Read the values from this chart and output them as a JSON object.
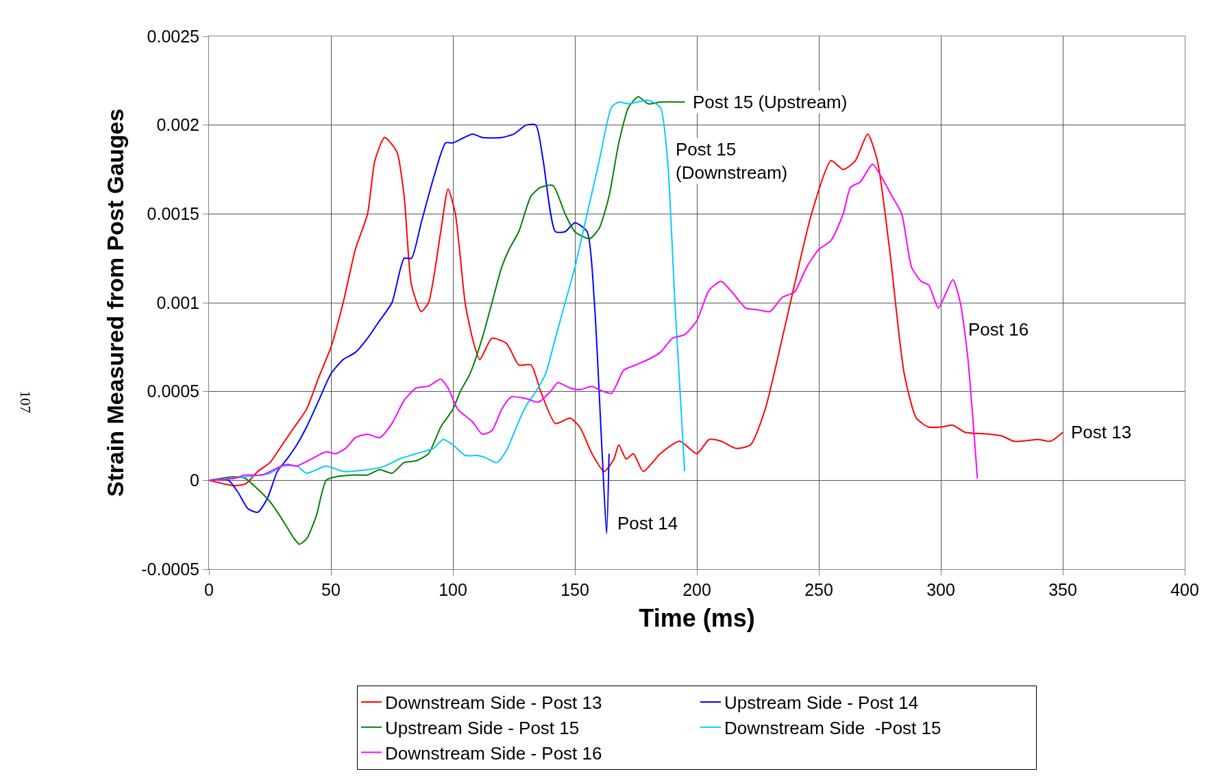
{
  "chart_data": {
    "type": "line",
    "xlabel": "Time (ms)",
    "ylabel": "Strain Measured from Post Gauges",
    "xlim": [
      0,
      400
    ],
    "xticks": [
      0,
      50,
      100,
      150,
      200,
      250,
      300,
      350,
      400
    ],
    "ylim": [
      -0.0005,
      0.0025
    ],
    "yticks": [
      -0.0005,
      0,
      0.0005,
      0.001,
      0.0015,
      0.002,
      0.0025
    ],
    "grid": true,
    "legend": "bottom",
    "marker": "none",
    "line_style": "solid",
    "series": [
      {
        "name": "Downstream Side - Post 13",
        "color": "#ff0000",
        "x": [
          0,
          10,
          15,
          20,
          25,
          30,
          35,
          40,
          45,
          50,
          55,
          60,
          65,
          68,
          72,
          77,
          80,
          83,
          87,
          90,
          95,
          98,
          101,
          105,
          108,
          111,
          116,
          122,
          127,
          132,
          136,
          142,
          148,
          152,
          157,
          162,
          166,
          168,
          171,
          174,
          178,
          185,
          193,
          200,
          205,
          210,
          216,
          222,
          228,
          235,
          240,
          247,
          255,
          260,
          265,
          270,
          274,
          279,
          285,
          290,
          295,
          300,
          305,
          310,
          320,
          325,
          330,
          340,
          345,
          350
        ],
        "values": [
          0,
          -3e-05,
          -2e-05,
          5e-05,
          0.0001,
          0.0002,
          0.0003,
          0.0004,
          0.00058,
          0.00075,
          0.001,
          0.0013,
          0.0015,
          0.0018,
          0.00193,
          0.00185,
          0.0016,
          0.0011,
          0.00095,
          0.001,
          0.0014,
          0.00164,
          0.0015,
          0.001,
          0.0008,
          0.00068,
          0.0008,
          0.00077,
          0.00065,
          0.00065,
          0.0005,
          0.00032,
          0.00035,
          0.0003,
          0.00015,
          5e-05,
          0.00012,
          0.0002,
          0.00012,
          0.00015,
          5e-05,
          0.00015,
          0.00022,
          0.00015,
          0.00023,
          0.00022,
          0.00018,
          0.0002,
          0.0004,
          0.0008,
          0.0011,
          0.0015,
          0.0018,
          0.00175,
          0.0018,
          0.00195,
          0.0018,
          0.0013,
          0.0006,
          0.00035,
          0.0003,
          0.0003,
          0.00031,
          0.00027,
          0.00026,
          0.00025,
          0.00022,
          0.00023,
          0.00022,
          0.00027
        ]
      },
      {
        "name": "Upstream Side - Post 14",
        "color": "#0000ff",
        "x": [
          0,
          8,
          12,
          16,
          20,
          24,
          28,
          32,
          36,
          40,
          45,
          50,
          55,
          60,
          65,
          70,
          75,
          80,
          83,
          87,
          92,
          97,
          100,
          108,
          112,
          120,
          125,
          130,
          134,
          137,
          142,
          146,
          150,
          155,
          158,
          161,
          163,
          164
        ],
        "values": [
          0,
          0,
          -7e-05,
          -0.00016,
          -0.00018,
          -0.0001,
          5e-05,
          0.00012,
          0.0002,
          0.0003,
          0.00045,
          0.0006,
          0.00068,
          0.00072,
          0.0008,
          0.0009,
          0.001,
          0.00125,
          0.00125,
          0.00145,
          0.0017,
          0.0019,
          0.0019,
          0.00195,
          0.00193,
          0.00193,
          0.00195,
          0.002,
          0.002,
          0.0018,
          0.0014,
          0.0014,
          0.00145,
          0.0014,
          0.001,
          0.0002,
          -0.0003,
          0.00015
        ]
      },
      {
        "name": "Upstream Side - Post 15",
        "color": "#008000",
        "x": [
          0,
          10,
          15,
          20,
          25,
          30,
          35,
          37,
          40,
          44,
          48,
          52,
          60,
          65,
          70,
          75,
          80,
          85,
          90,
          95,
          100,
          103,
          107,
          112,
          116,
          120,
          123,
          127,
          132,
          136,
          141,
          146,
          150,
          156,
          160,
          164,
          168,
          172,
          176,
          180,
          185,
          195
        ],
        "values": [
          0,
          2e-05,
          1e-05,
          -5e-05,
          -0.00012,
          -0.00022,
          -0.00033,
          -0.00036,
          -0.00033,
          -0.0002,
          0,
          2e-05,
          3e-05,
          3e-05,
          6e-05,
          4e-05,
          0.0001,
          0.00011,
          0.00015,
          0.0003,
          0.0004,
          0.0005,
          0.0006,
          0.0008,
          0.001,
          0.0012,
          0.0013,
          0.0014,
          0.0016,
          0.00165,
          0.00166,
          0.0015,
          0.0014,
          0.00136,
          0.00142,
          0.0016,
          0.0019,
          0.0021,
          0.00216,
          0.00212,
          0.00213,
          0.00213
        ]
      },
      {
        "name": "Downstream Side  -Post 15",
        "color": "#00ccff",
        "x": [
          0,
          15,
          25,
          30,
          36,
          40,
          48,
          55,
          65,
          72,
          78,
          85,
          92,
          96,
          100,
          105,
          110,
          113,
          118,
          122,
          126,
          130,
          134,
          138,
          142,
          146,
          150,
          155,
          160,
          165,
          168,
          172,
          180,
          185,
          188,
          191,
          195
        ],
        "values": [
          0,
          2e-05,
          4e-05,
          8e-05,
          8e-05,
          4e-05,
          8e-05,
          5e-05,
          6e-05,
          8e-05,
          0.00012,
          0.00015,
          0.00018,
          0.00023,
          0.0002,
          0.00014,
          0.00014,
          0.00013,
          0.0001,
          0.00017,
          0.0003,
          0.00042,
          0.0005,
          0.0006,
          0.0008,
          0.001,
          0.0012,
          0.0015,
          0.0018,
          0.0021,
          0.00213,
          0.00212,
          0.00214,
          0.0021,
          0.0018,
          0.001,
          5e-05
        ]
      },
      {
        "name": "Downstream Side - Post 16",
        "color": "#ff00ff",
        "x": [
          0,
          10,
          15,
          22,
          28,
          32,
          36,
          42,
          48,
          52,
          56,
          60,
          65,
          70,
          75,
          80,
          85,
          90,
          95,
          98,
          102,
          108,
          112,
          116,
          120,
          124,
          130,
          135,
          140,
          143,
          148,
          152,
          157,
          160,
          165,
          170,
          175,
          180,
          185,
          190,
          195,
          200,
          205,
          210,
          215,
          220,
          225,
          230,
          235,
          240,
          245,
          250,
          255,
          260,
          263,
          267,
          272,
          276,
          280,
          284,
          288,
          292,
          295,
          299,
          302,
          305,
          308,
          311,
          315
        ],
        "values": [
          0,
          1e-05,
          3e-05,
          3e-05,
          7e-05,
          9e-05,
          8e-05,
          0.00012,
          0.00016,
          0.00015,
          0.00018,
          0.00024,
          0.00026,
          0.00024,
          0.00032,
          0.00045,
          0.00052,
          0.00053,
          0.00057,
          0.00052,
          0.0004,
          0.00033,
          0.00026,
          0.00028,
          0.0004,
          0.00047,
          0.00046,
          0.00044,
          0.0005,
          0.00055,
          0.00052,
          0.00051,
          0.00053,
          0.00051,
          0.00049,
          0.00062,
          0.00065,
          0.00068,
          0.00072,
          0.0008,
          0.00082,
          0.0009,
          0.00107,
          0.00112,
          0.00105,
          0.00097,
          0.00096,
          0.00095,
          0.00103,
          0.00106,
          0.0012,
          0.0013,
          0.00135,
          0.0015,
          0.00165,
          0.00168,
          0.00178,
          0.0017,
          0.0016,
          0.0015,
          0.0012,
          0.00112,
          0.0011,
          0.00097,
          0.00105,
          0.00113,
          0.001,
          0.0007,
          1e-05
        ]
      }
    ],
    "annotations": [
      {
        "text": "Post 15 (Upstream)",
        "x": 195,
        "y": 0.00213
      },
      {
        "text": "Post 15\n(Downstream)",
        "x": 188,
        "y": 0.0018
      },
      {
        "text": "Post 14",
        "x": 164,
        "y": -0.00024
      },
      {
        "text": "Post 16",
        "x": 308,
        "y": 0.00085
      },
      {
        "text": "Post 13",
        "x": 350,
        "y": 0.00027
      },
      "107"
    ]
  }
}
